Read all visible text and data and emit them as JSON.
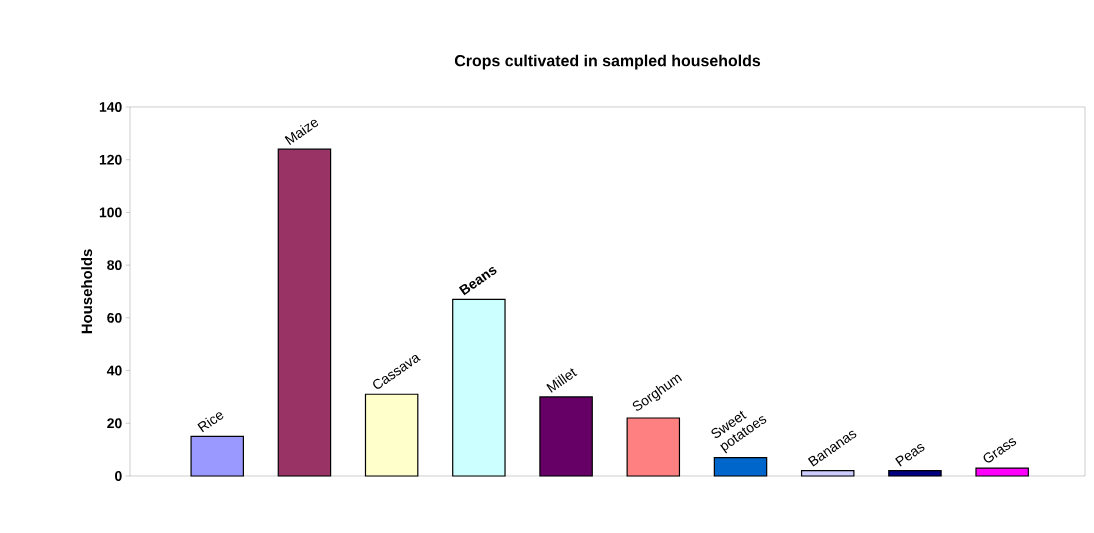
{
  "chart_data": {
    "type": "bar",
    "title": "Crops cultivated in sampled households",
    "ylabel": "Households",
    "categories": [
      "Rice",
      "Maize",
      "Cassava",
      "**Beans**",
      "Millet",
      "Sorghum",
      "Sweet potatoes",
      "Bananas",
      "Peas",
      "Grass"
    ],
    "values": [
      15,
      124,
      31,
      67,
      30,
      22,
      7,
      2,
      2,
      3
    ],
    "colors": [
      "#9999ff",
      "#993366",
      "#ffffcc",
      "#ccffff",
      "#660066",
      "#ff8080",
      "#0066cc",
      "#ccccff",
      "#000080",
      "#ff00ff"
    ],
    "ylim": [
      0,
      140
    ],
    "yticks": [
      0,
      20,
      40,
      60,
      80,
      100,
      120,
      140
    ],
    "grid": false
  }
}
